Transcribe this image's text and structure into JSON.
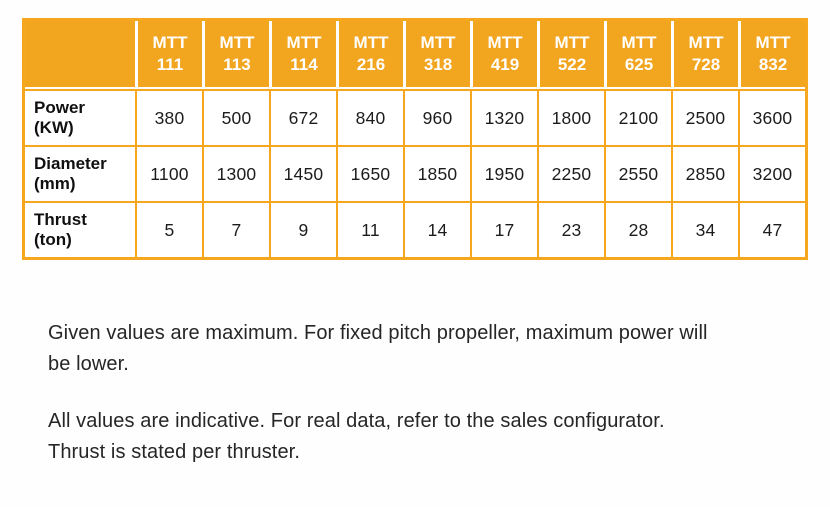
{
  "colors": {
    "header_bg": "#F2A51F",
    "grid_border": "#F6A71E",
    "header_text": "#FFFFFF",
    "body_text": "#1C1C1C",
    "note_text": "#262626",
    "page_bg": "#FEFEFE"
  },
  "table": {
    "corner": "",
    "columns": [
      {
        "line1": "MTT",
        "line2": "111"
      },
      {
        "line1": "MTT",
        "line2": "113"
      },
      {
        "line1": "MTT",
        "line2": "114"
      },
      {
        "line1": "MTT",
        "line2": "216"
      },
      {
        "line1": "MTT",
        "line2": "318"
      },
      {
        "line1": "MTT",
        "line2": "419"
      },
      {
        "line1": "MTT",
        "line2": "522"
      },
      {
        "line1": "MTT",
        "line2": "625"
      },
      {
        "line1": "MTT",
        "line2": "728"
      },
      {
        "line1": "MTT",
        "line2": "832"
      }
    ],
    "rows": [
      {
        "label": "Power",
        "unit": "(KW)",
        "values": [
          "380",
          "500",
          "672",
          "840",
          "960",
          "1320",
          "1800",
          "2100",
          "2500",
          "3600"
        ]
      },
      {
        "label": "Diameter",
        "unit": "(mm)",
        "values": [
          "1100",
          "1300",
          "1450",
          "1650",
          "1850",
          "1950",
          "2250",
          "2550",
          "2850",
          "3200"
        ]
      },
      {
        "label": "Thrust",
        "unit": "(ton)",
        "values": [
          "5",
          "7",
          "9",
          "11",
          "14",
          "17",
          "23",
          "28",
          "34",
          "47"
        ]
      }
    ]
  },
  "notes": [
    {
      "lines": [
        "Given values are maximum. For fixed pitch propeller, maximum power will",
        "be lower."
      ]
    },
    {
      "lines": [
        "All values are indicative. For real data, refer to the sales configurator.",
        "Thrust is stated per thruster."
      ]
    }
  ],
  "chart_data": {
    "type": "table",
    "columns": [
      "",
      "MTT 111",
      "MTT 113",
      "MTT 114",
      "MTT 216",
      "MTT 318",
      "MTT 419",
      "MTT 522",
      "MTT 625",
      "MTT 728",
      "MTT 832"
    ],
    "rows": [
      [
        "Power (KW)",
        380,
        500,
        672,
        840,
        960,
        1320,
        1800,
        2100,
        2500,
        3600
      ],
      [
        "Diameter (mm)",
        1100,
        1300,
        1450,
        1650,
        1850,
        1950,
        2250,
        2550,
        2850,
        3200
      ],
      [
        "Thrust (ton)",
        5,
        7,
        9,
        11,
        14,
        17,
        23,
        28,
        34,
        47
      ]
    ]
  }
}
